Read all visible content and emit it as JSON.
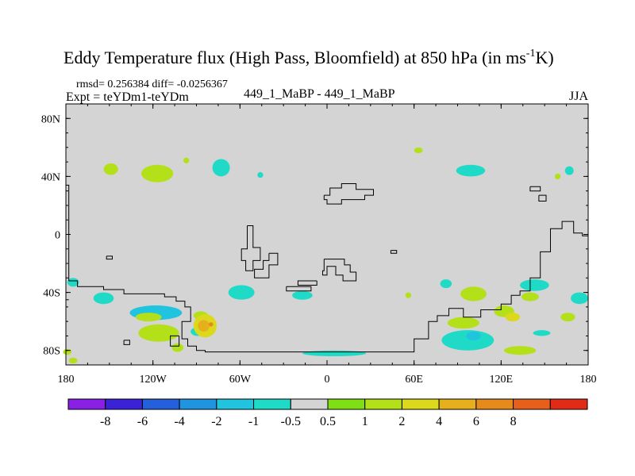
{
  "chart_data": {
    "type": "heatmap",
    "title": "Eddy Temperature flux (High Pass, Bloomfield) at 850 hPa (in ms",
    "title_sup": "-1",
    "title_end": "K)",
    "stats_line": "rmsd= 0.256384 diff= -0.0256367",
    "expt_label": "Expt = teYDm1-teYDm",
    "center_label": "449_1_MaBP - 449_1_MaBP",
    "season_label": "JJA",
    "projection": "cylindrical-equidistant",
    "lon_range": [
      -180,
      180
    ],
    "lat_range": [
      -90,
      90
    ],
    "x_ticks": [
      {
        "lon": -180,
        "label": "180"
      },
      {
        "lon": -120,
        "label": "120W"
      },
      {
        "lon": -60,
        "label": "60W"
      },
      {
        "lon": 0,
        "label": "0"
      },
      {
        "lon": 60,
        "label": "60E"
      },
      {
        "lon": 120,
        "label": "120E"
      },
      {
        "lon": 180,
        "label": "180"
      }
    ],
    "y_ticks": [
      {
        "lat": 80,
        "label": "80N"
      },
      {
        "lat": 40,
        "label": "40N"
      },
      {
        "lat": 0,
        "label": "0"
      },
      {
        "lat": -40,
        "label": "40S"
      },
      {
        "lat": -80,
        "label": "80S"
      }
    ],
    "background_color": "#d4d4d4",
    "colorbar": {
      "colors": [
        "#8a1fe6",
        "#3b22d6",
        "#2460dc",
        "#1f95e0",
        "#20c4df",
        "#20dac8",
        "#d4d4d4",
        "#7ee014",
        "#b4e01a",
        "#dcd81c",
        "#e6b01c",
        "#e68a1c",
        "#e6601c",
        "#e02c16"
      ],
      "labels": [
        "-8",
        "-6",
        "-4",
        "-2",
        "-1",
        "-0.5",
        "0.5",
        "1",
        "2",
        "4",
        "6",
        "8"
      ]
    },
    "anomaly_patches": [
      {
        "lon": -149,
        "lat": 45,
        "rx": 5,
        "ry": 4,
        "value": 1.5
      },
      {
        "lon": -117,
        "lat": 42,
        "rx": 11,
        "ry": 6,
        "value": 1.5
      },
      {
        "lon": -97,
        "lat": 51,
        "rx": 2,
        "ry": 2,
        "value": 1.5
      },
      {
        "lon": -73,
        "lat": 46,
        "rx": 6,
        "ry": 6,
        "value": -0.8
      },
      {
        "lon": -46,
        "lat": 41,
        "rx": 2,
        "ry": 2,
        "value": -0.8
      },
      {
        "lon": 63,
        "lat": 58,
        "rx": 3,
        "ry": 2,
        "value": 1.5
      },
      {
        "lon": 99,
        "lat": 44,
        "rx": 10,
        "ry": 4,
        "value": -0.8
      },
      {
        "lon": 167,
        "lat": 44,
        "rx": 3,
        "ry": 3,
        "value": -0.8
      },
      {
        "lon": 159,
        "lat": 40,
        "rx": 2,
        "ry": 2,
        "value": 1.5
      },
      {
        "lon": -175,
        "lat": -33,
        "rx": 4,
        "ry": 3,
        "value": -0.8
      },
      {
        "lon": -154,
        "lat": -44,
        "rx": 7,
        "ry": 4,
        "value": -0.8
      },
      {
        "lon": -59,
        "lat": -40,
        "rx": 9,
        "ry": 5,
        "value": -0.8
      },
      {
        "lon": -17,
        "lat": -42,
        "rx": 7,
        "ry": 3,
        "value": -0.8
      },
      {
        "lon": -118,
        "lat": -54,
        "rx": 18,
        "ry": 5,
        "value": -1.5
      },
      {
        "lon": -116,
        "lat": -68,
        "rx": 14,
        "ry": 6,
        "value": 1.5
      },
      {
        "lon": -123,
        "lat": -57,
        "rx": 9,
        "ry": 3,
        "value": 1.5
      },
      {
        "lon": -87,
        "lat": -56,
        "rx": 5,
        "ry": 3,
        "value": 1.5
      },
      {
        "lon": -89,
        "lat": -67,
        "rx": 5,
        "ry": 3,
        "value": -0.8
      },
      {
        "lon": -103,
        "lat": -78,
        "rx": 4,
        "ry": 3,
        "value": 1.5
      },
      {
        "lon": -84,
        "lat": -63,
        "rx": 8,
        "ry": 8,
        "value": 3.0
      },
      {
        "lon": -85,
        "lat": -63,
        "rx": 4,
        "ry": 4,
        "value": 5.0
      },
      {
        "lon": -80,
        "lat": -62,
        "rx": 1.5,
        "ry": 1.5,
        "value": 7.0
      },
      {
        "lon": -179,
        "lat": -81,
        "rx": 3,
        "ry": 2,
        "value": 1.5
      },
      {
        "lon": -175,
        "lat": -87,
        "rx": 3,
        "ry": 2,
        "value": 1.5
      },
      {
        "lon": 5,
        "lat": -82,
        "rx": 22,
        "ry": 2,
        "value": -0.8
      },
      {
        "lon": 56,
        "lat": -42,
        "rx": 2,
        "ry": 2,
        "value": 1.5
      },
      {
        "lon": 82,
        "lat": -34,
        "rx": 4,
        "ry": 3,
        "value": -0.8
      },
      {
        "lon": 101,
        "lat": -41,
        "rx": 9,
        "ry": 5,
        "value": 1.5
      },
      {
        "lon": 143,
        "lat": -35,
        "rx": 10,
        "ry": 4,
        "value": -0.8
      },
      {
        "lon": 174,
        "lat": -44,
        "rx": 6,
        "ry": 4,
        "value": -0.8
      },
      {
        "lon": 94,
        "lat": -61,
        "rx": 11,
        "ry": 4,
        "value": 1.5
      },
      {
        "lon": 122,
        "lat": -53,
        "rx": 7,
        "ry": 4,
        "value": 1.5
      },
      {
        "lon": 128,
        "lat": -57,
        "rx": 5,
        "ry": 3,
        "value": 3.0
      },
      {
        "lon": 97,
        "lat": -73,
        "rx": 18,
        "ry": 7,
        "value": -0.8
      },
      {
        "lon": 101,
        "lat": -70,
        "rx": 5,
        "ry": 3,
        "value": -1.5
      },
      {
        "lon": 133,
        "lat": -80,
        "rx": 11,
        "ry": 3,
        "value": 1.5
      },
      {
        "lon": 148,
        "lat": -68,
        "rx": 6,
        "ry": 2,
        "value": -0.8
      },
      {
        "lon": 166,
        "lat": -57,
        "rx": 5,
        "ry": 3,
        "value": 1.5
      },
      {
        "lon": 140,
        "lat": -43,
        "rx": 6,
        "ry": 3,
        "value": 1.5
      }
    ],
    "contour_lines": [
      [
        [
          -180,
          34
        ],
        [
          -178,
          34
        ],
        [
          -178,
          -32
        ]
      ],
      [
        [
          -178,
          -32
        ],
        [
          -172,
          -32
        ],
        [
          -172,
          -36
        ],
        [
          -154,
          -36
        ],
        [
          -154,
          -38
        ],
        [
          -140,
          -38
        ],
        [
          -140,
          -41
        ],
        [
          -112,
          -41
        ],
        [
          -112,
          -43
        ],
        [
          -104,
          -43
        ],
        [
          -104,
          -46
        ],
        [
          -98,
          -46
        ],
        [
          -98,
          -50
        ],
        [
          -94,
          -50
        ],
        [
          -94,
          -60
        ],
        [
          -100,
          -60
        ],
        [
          -100,
          -72
        ],
        [
          -96,
          -72
        ],
        [
          -96,
          -77
        ],
        [
          -90,
          -77
        ],
        [
          -90,
          -80
        ],
        [
          -84,
          -80
        ],
        [
          -84,
          -81
        ],
        [
          60,
          -81
        ],
        [
          60,
          -72
        ],
        [
          70,
          -72
        ],
        [
          70,
          -60
        ],
        [
          76,
          -60
        ],
        [
          76,
          -56
        ],
        [
          84,
          -56
        ],
        [
          84,
          -51
        ],
        [
          94,
          -51
        ],
        [
          94,
          -57
        ],
        [
          106,
          -57
        ],
        [
          106,
          -52
        ],
        [
          120,
          -52
        ],
        [
          120,
          -48
        ],
        [
          127,
          -48
        ],
        [
          127,
          -42
        ],
        [
          133,
          -42
        ],
        [
          133,
          -39
        ],
        [
          140,
          -39
        ],
        [
          140,
          -30
        ],
        [
          147,
          -30
        ],
        [
          147,
          -12
        ],
        [
          154,
          -12
        ],
        [
          154,
          4
        ],
        [
          162,
          4
        ],
        [
          162,
          9
        ],
        [
          170,
          9
        ],
        [
          170,
          1
        ],
        [
          176,
          1
        ],
        [
          176,
          -1
        ],
        [
          180,
          -1
        ]
      ],
      [
        [
          -55,
          6
        ],
        [
          -51,
          6
        ],
        [
          -51,
          -9
        ],
        [
          -46,
          -9
        ],
        [
          -46,
          -18
        ],
        [
          -51,
          -18
        ],
        [
          -51,
          -25
        ],
        [
          -56,
          -25
        ],
        [
          -56,
          -18
        ],
        [
          -59,
          -18
        ],
        [
          -59,
          -10
        ],
        [
          -55,
          -10
        ],
        [
          -55,
          6
        ]
      ],
      [
        [
          -40,
          -13
        ],
        [
          -34,
          -13
        ],
        [
          -34,
          -21
        ],
        [
          -40,
          -21
        ],
        [
          -40,
          -30
        ],
        [
          -50,
          -30
        ],
        [
          -50,
          -24
        ],
        [
          -44,
          -24
        ],
        [
          -44,
          -18
        ],
        [
          -40,
          -18
        ],
        [
          -40,
          -13
        ]
      ],
      [
        [
          -28,
          -36
        ],
        [
          -28,
          -39
        ],
        [
          -11,
          -39
        ],
        [
          -11,
          -36
        ],
        [
          -28,
          -36
        ]
      ],
      [
        [
          -7,
          -32
        ],
        [
          -7,
          -35
        ],
        [
          -20,
          -35
        ],
        [
          -20,
          -32
        ],
        [
          -7,
          -32
        ]
      ],
      [
        [
          -2,
          -17
        ],
        [
          12,
          -17
        ],
        [
          12,
          -21
        ],
        [
          16,
          -21
        ],
        [
          16,
          -26
        ],
        [
          20,
          -26
        ],
        [
          20,
          -32
        ],
        [
          11,
          -32
        ],
        [
          11,
          -28
        ],
        [
          6,
          -28
        ],
        [
          6,
          -22
        ],
        [
          0,
          -22
        ],
        [
          0,
          -28
        ],
        [
          -3,
          -28
        ],
        [
          -3,
          -25
        ],
        [
          -2,
          -25
        ],
        [
          -2,
          -17
        ]
      ],
      [
        [
          -2,
          27
        ],
        [
          2,
          27
        ],
        [
          2,
          32
        ],
        [
          10,
          32
        ],
        [
          10,
          35
        ],
        [
          20,
          35
        ],
        [
          20,
          31
        ],
        [
          32,
          31
        ],
        [
          32,
          27
        ],
        [
          26,
          27
        ],
        [
          26,
          24
        ],
        [
          10,
          24
        ],
        [
          10,
          21
        ],
        [
          0,
          21
        ],
        [
          0,
          24
        ],
        [
          -2,
          24
        ],
        [
          -2,
          27
        ]
      ],
      [
        [
          44,
          -11
        ],
        [
          48,
          -11
        ],
        [
          48,
          -13
        ],
        [
          44,
          -13
        ],
        [
          44,
          -11
        ]
      ],
      [
        [
          -152,
          -15
        ],
        [
          -148,
          -15
        ],
        [
          -148,
          -17
        ],
        [
          -152,
          -17
        ],
        [
          -152,
          -15
        ]
      ],
      [
        [
          -102,
          -70
        ],
        [
          -102,
          -77
        ],
        [
          -108,
          -77
        ],
        [
          -108,
          -70
        ],
        [
          -102,
          -70
        ]
      ],
      [
        [
          -140,
          -73
        ],
        [
          -136,
          -73
        ],
        [
          -136,
          -76
        ],
        [
          -140,
          -76
        ],
        [
          -140,
          -73
        ]
      ],
      [
        [
          140,
          33
        ],
        [
          147,
          33
        ],
        [
          147,
          30
        ],
        [
          140,
          30
        ],
        [
          140,
          33
        ]
      ],
      [
        [
          146,
          27
        ],
        [
          151,
          27
        ],
        [
          151,
          23
        ],
        [
          146,
          23
        ],
        [
          146,
          27
        ]
      ],
      [
        [
          -180,
          -45
        ],
        [
          -178,
          -45
        ]
      ]
    ]
  }
}
